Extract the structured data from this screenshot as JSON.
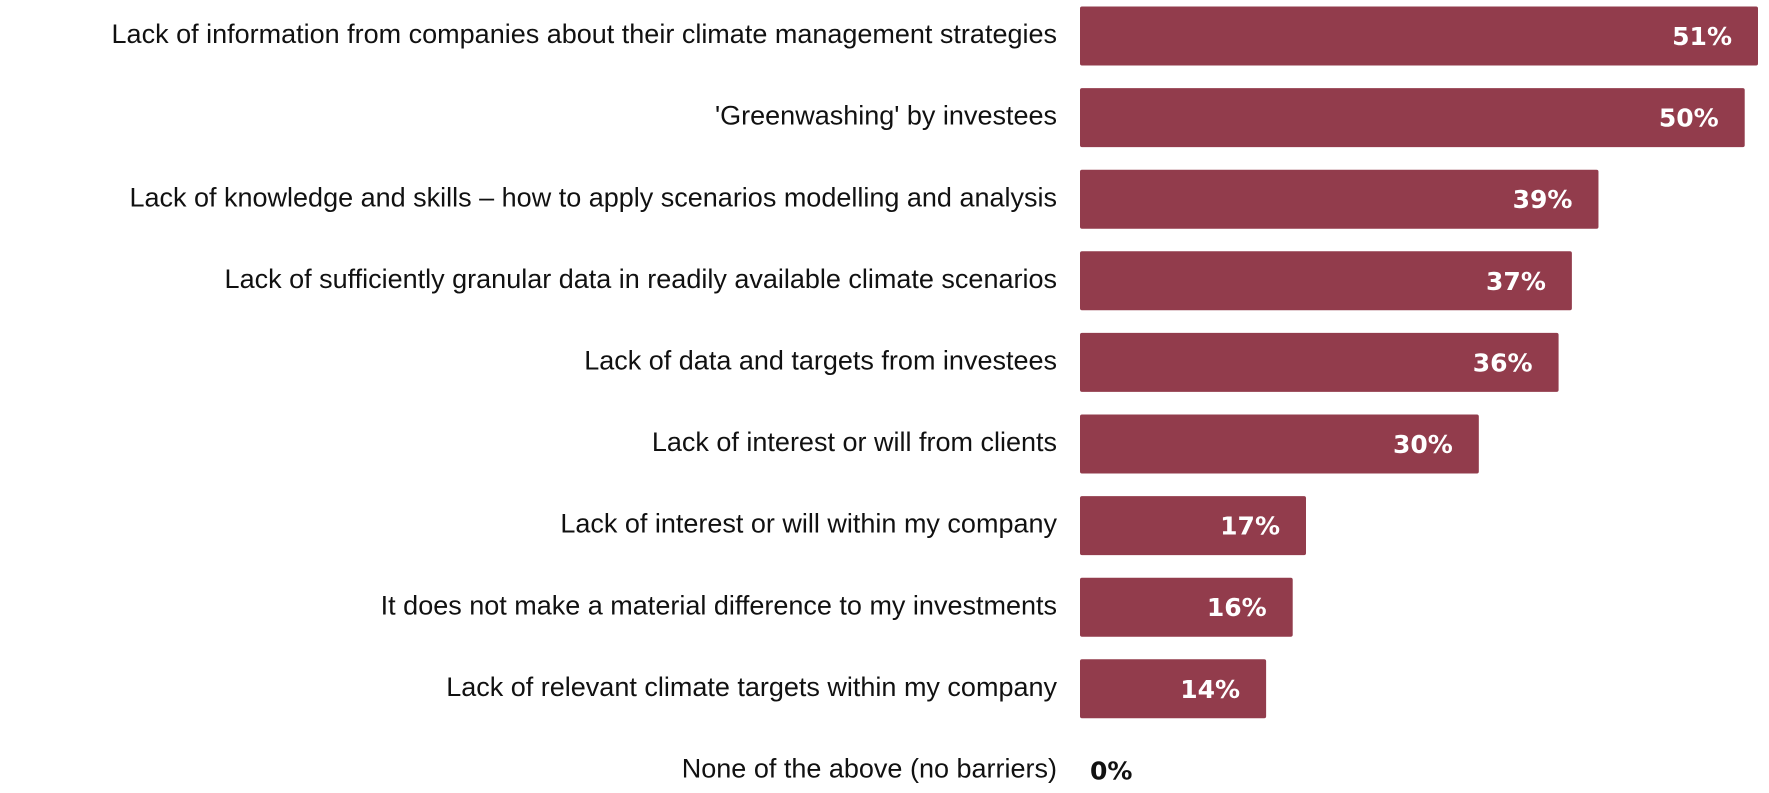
{
  "chart_data": {
    "type": "bar",
    "orientation": "horizontal",
    "title": "",
    "xlabel": "",
    "ylabel": "",
    "xlim": [
      0,
      51
    ],
    "grid": false,
    "legend": "none",
    "bar_color": "#923c4c",
    "value_label_color_inside": "#ffffff",
    "value_label_color_outside": "#111111",
    "categories": [
      "Lack of information from companies about their climate management strategies",
      "'Greenwashing' by investees",
      "Lack of knowledge and skills – how to apply scenarios modelling and analysis",
      "Lack of sufficiently granular data in readily available climate scenarios",
      "Lack of data and targets from investees",
      "Lack of interest or will from clients",
      "Lack of interest or will within my company",
      "It does not make a material difference to my investments",
      "Lack of relevant climate targets within my company",
      "None of the above (no barriers)"
    ],
    "values": [
      51,
      50,
      39,
      37,
      36,
      30,
      17,
      16,
      14,
      0
    ],
    "value_labels": [
      "51%",
      "50%",
      "39%",
      "37%",
      "36%",
      "30%",
      "17%",
      "16%",
      "14%",
      "0%"
    ]
  }
}
